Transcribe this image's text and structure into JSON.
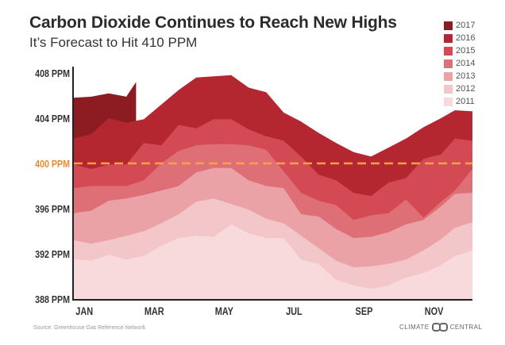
{
  "chart_data": {
    "type": "area",
    "title": "Carbon Dioxide Continues to Reach New Highs",
    "subtitle": "It’s Forecast to Hit 410 PPM",
    "xlabel": "",
    "ylabel": "",
    "x_ticks": [
      {
        "label": "JAN",
        "month": 1
      },
      {
        "label": "MAR",
        "month": 3
      },
      {
        "label": "MAY",
        "month": 5
      },
      {
        "label": "JUL",
        "month": 7
      },
      {
        "label": "SEP",
        "month": 9
      },
      {
        "label": "NOV",
        "month": 11
      }
    ],
    "y_ticks": [
      {
        "label": "408 PPM",
        "value": 408
      },
      {
        "label": "404 PPM",
        "value": 404
      },
      {
        "label": "400 PPM",
        "value": 400,
        "highlight": true
      },
      {
        "label": "396 PPM",
        "value": 396
      },
      {
        "label": "392 PPM",
        "value": 392
      },
      {
        "label": "388 PPM",
        "value": 388
      }
    ],
    "xlim": [
      0.7,
      12.1
    ],
    "ylim": [
      388,
      408
    ],
    "grid": false,
    "legend": "top-right",
    "reference_line": {
      "value": 400,
      "color": "#f5a04a",
      "style": "dashed"
    },
    "x": [
      0.7,
      1.2,
      1.7,
      2.2,
      2.7,
      3.2,
      3.7,
      4.2,
      4.7,
      5.2,
      5.7,
      6.2,
      6.7,
      7.2,
      7.7,
      8.2,
      8.7,
      9.2,
      9.7,
      10.2,
      10.7,
      11.2,
      11.6,
      12.1
    ],
    "series": [
      {
        "name": "2017",
        "color": "#8c1c22",
        "x": [
          0.7,
          1.2,
          1.7,
          2.2,
          2.48
        ],
        "values": [
          405.8,
          405.9,
          406.2,
          405.9,
          407.2
        ]
      },
      {
        "name": "2016",
        "color": "#b52730",
        "values": [
          402.2,
          402.6,
          404.0,
          403.6,
          403.9,
          405.2,
          406.5,
          407.6,
          407.7,
          407.8,
          406.7,
          406.3,
          404.5,
          403.7,
          402.7,
          401.8,
          401.0,
          400.6,
          401.4,
          402.2,
          403.2,
          404.0,
          404.7,
          404.6
        ]
      },
      {
        "name": "2015",
        "color": "#d44a54",
        "values": [
          399.9,
          399.5,
          399.9,
          399.9,
          401.8,
          401.6,
          403.4,
          403.1,
          403.9,
          403.9,
          403.0,
          402.4,
          402.0,
          400.6,
          399.0,
          398.5,
          397.4,
          397.1,
          398.3,
          398.7,
          400.4,
          400.8,
          402.2,
          402.0
        ]
      },
      {
        "name": "2014",
        "color": "#df6f77",
        "values": [
          397.8,
          398.0,
          398.0,
          398.0,
          398.5,
          400.0,
          401.1,
          401.6,
          401.7,
          401.7,
          401.6,
          401.2,
          399.3,
          397.4,
          396.7,
          396.3,
          395.0,
          395.4,
          395.6,
          396.8,
          395.2,
          396.6,
          397.6,
          399.5
        ]
      },
      {
        "name": "2013",
        "color": "#eaa2a7",
        "values": [
          395.6,
          395.8,
          396.7,
          396.9,
          397.2,
          397.6,
          398.0,
          399.2,
          399.6,
          399.6,
          398.5,
          398.0,
          397.8,
          395.5,
          395.3,
          394.2,
          393.4,
          393.5,
          393.9,
          394.6,
          395.0,
          396.2,
          397.3,
          397.4
        ]
      },
      {
        "name": "2012",
        "color": "#f3c6c9",
        "values": [
          393.2,
          392.9,
          393.2,
          393.6,
          394.0,
          394.7,
          395.5,
          396.6,
          396.9,
          396.4,
          395.9,
          395.1,
          394.7,
          393.6,
          392.5,
          391.4,
          390.8,
          390.9,
          391.1,
          391.5,
          392.3,
          393.3,
          394.3,
          394.8
        ]
      },
      {
        "name": "2011",
        "color": "#f8dadc",
        "values": [
          391.5,
          391.4,
          391.9,
          391.5,
          391.8,
          392.7,
          393.4,
          393.6,
          393.5,
          394.6,
          393.8,
          393.4,
          393.4,
          391.5,
          391.1,
          389.7,
          389.2,
          388.9,
          389.2,
          389.9,
          390.3,
          391.0,
          391.8,
          392.3
        ]
      }
    ]
  },
  "footer": {
    "source": "Source: Greenhouse Gas Reference Network",
    "logo_text_left": "CLIMATE",
    "logo_text_right": "CENTRAL"
  }
}
